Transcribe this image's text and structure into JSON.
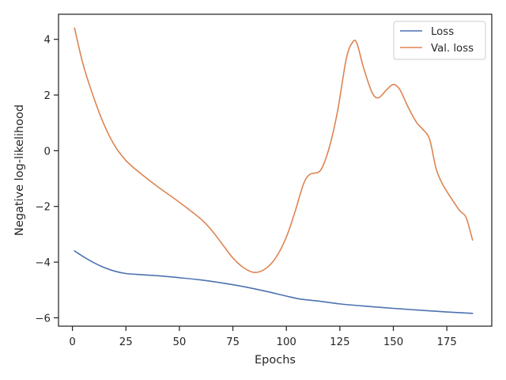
{
  "chart_data": {
    "type": "line",
    "title": "",
    "xlabel": "Epochs",
    "ylabel": "Negative log-likelihood",
    "xlim": [
      -6.5,
      196
    ],
    "ylim": [
      -6.3,
      4.9
    ],
    "xticks": [
      0,
      25,
      50,
      75,
      100,
      125,
      150,
      175
    ],
    "yticks": [
      -6,
      -4,
      -2,
      0,
      2,
      4
    ],
    "ytick_labels": [
      "−6",
      "−4",
      "−2",
      "0",
      "2",
      "4"
    ],
    "grid": false,
    "legend_position": "upper-right",
    "series": [
      {
        "name": "Loss",
        "color": "#4c72b0",
        "points": [
          [
            1,
            -3.6
          ],
          [
            5,
            -3.8
          ],
          [
            10,
            -4.02
          ],
          [
            15,
            -4.2
          ],
          [
            20,
            -4.33
          ],
          [
            25,
            -4.41
          ],
          [
            30,
            -4.44
          ],
          [
            40,
            -4.49
          ],
          [
            50,
            -4.56
          ],
          [
            60,
            -4.64
          ],
          [
            70,
            -4.75
          ],
          [
            80,
            -4.88
          ],
          [
            90,
            -5.04
          ],
          [
            100,
            -5.22
          ],
          [
            106,
            -5.32
          ],
          [
            115,
            -5.4
          ],
          [
            125,
            -5.5
          ],
          [
            135,
            -5.57
          ],
          [
            150,
            -5.66
          ],
          [
            165,
            -5.74
          ],
          [
            175,
            -5.79
          ],
          [
            187,
            -5.84
          ]
        ]
      },
      {
        "name": "Val. loss",
        "color": "#dd8452",
        "points": [
          [
            1,
            4.4
          ],
          [
            5,
            3.1
          ],
          [
            10,
            1.9
          ],
          [
            15,
            0.9
          ],
          [
            20,
            0.15
          ],
          [
            25,
            -0.35
          ],
          [
            30,
            -0.7
          ],
          [
            40,
            -1.3
          ],
          [
            50,
            -1.85
          ],
          [
            60,
            -2.45
          ],
          [
            65,
            -2.85
          ],
          [
            70,
            -3.35
          ],
          [
            75,
            -3.85
          ],
          [
            80,
            -4.2
          ],
          [
            85,
            -4.37
          ],
          [
            90,
            -4.25
          ],
          [
            95,
            -3.85
          ],
          [
            100,
            -3.1
          ],
          [
            104,
            -2.2
          ],
          [
            108,
            -1.2
          ],
          [
            111,
            -0.85
          ],
          [
            116,
            -0.7
          ],
          [
            120,
            0.1
          ],
          [
            124,
            1.45
          ],
          [
            128,
            3.3
          ],
          [
            131,
            3.9
          ],
          [
            133,
            3.85
          ],
          [
            136,
            3.0
          ],
          [
            140,
            2.1
          ],
          [
            143,
            1.9
          ],
          [
            147,
            2.2
          ],
          [
            150,
            2.38
          ],
          [
            153,
            2.2
          ],
          [
            157,
            1.55
          ],
          [
            161,
            1.0
          ],
          [
            164,
            0.75
          ],
          [
            167,
            0.4
          ],
          [
            170,
            -0.65
          ],
          [
            173,
            -1.2
          ],
          [
            177,
            -1.7
          ],
          [
            181,
            -2.15
          ],
          [
            184,
            -2.4
          ],
          [
            187,
            -3.2
          ]
        ]
      }
    ]
  }
}
